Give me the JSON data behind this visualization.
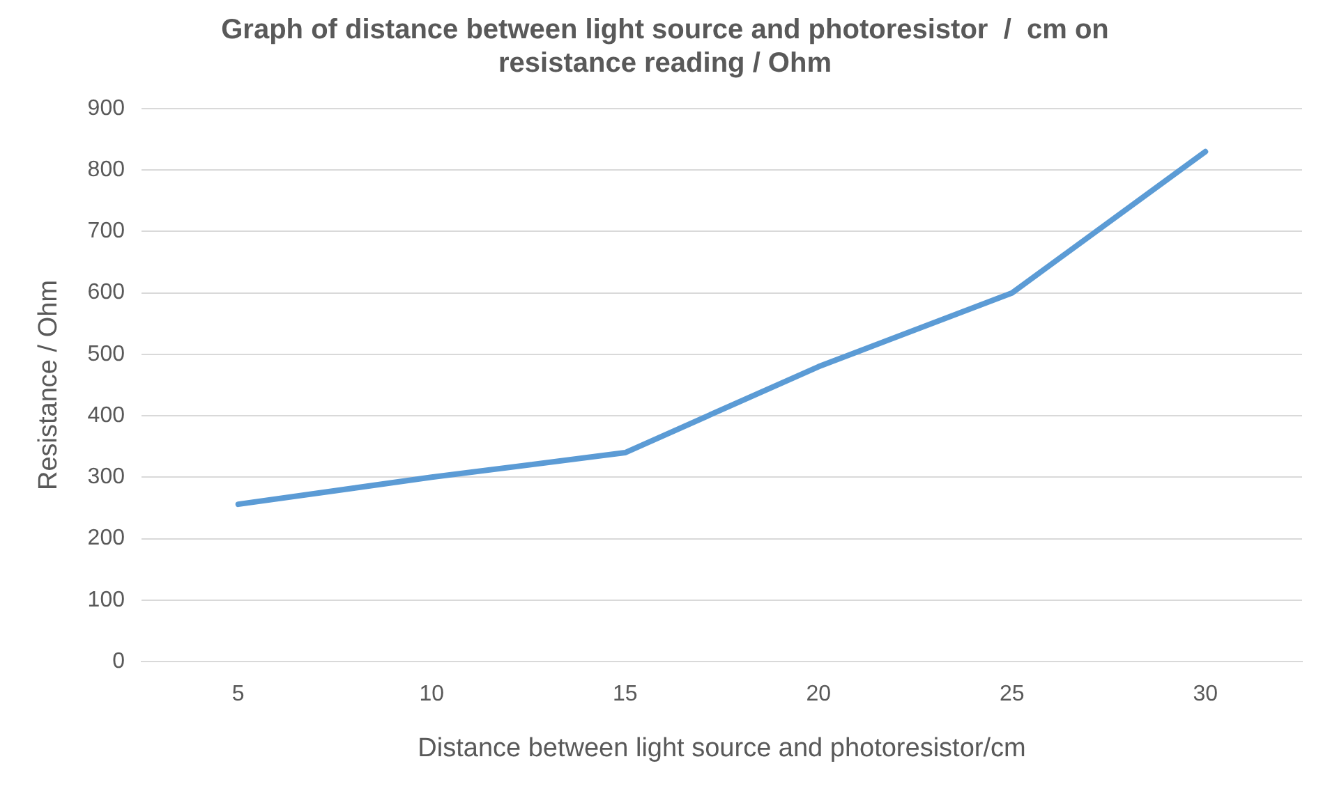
{
  "chart_data": {
    "type": "line",
    "title": "Graph of distance between light source and photoresistor  /  cm on resistance reading / Ohm",
    "xlabel": "Distance between light source and photoresistor/cm",
    "ylabel": "Resistance / Ohm",
    "categories": [
      "5",
      "10",
      "15",
      "20",
      "25",
      "30"
    ],
    "series": [
      {
        "color": "#5b9bd5",
        "values": [
          256,
          300,
          340,
          480,
          600,
          830
        ]
      }
    ],
    "ylim": [
      0,
      900
    ],
    "yticks": [
      0,
      100,
      200,
      300,
      400,
      500,
      600,
      700,
      800,
      900
    ],
    "grid": "y",
    "legend": false,
    "marker": "none",
    "line_style": "solid"
  }
}
